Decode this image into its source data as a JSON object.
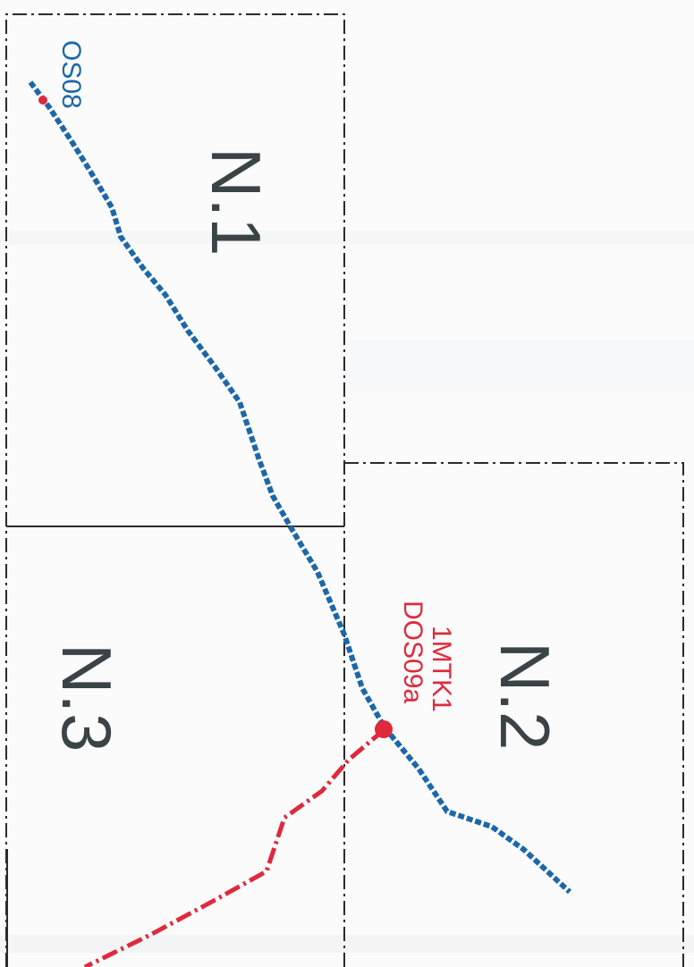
{
  "colors": {
    "background": "#fbfbfc",
    "sheet_border": "#2b2b2b",
    "zone_label": "#3a4346",
    "blue_route": "#1c67a8",
    "red_route": "#de2a3c"
  },
  "zones": [
    {
      "id": "n1",
      "label": "N.1"
    },
    {
      "id": "n2",
      "label": "N.2"
    },
    {
      "id": "n3",
      "label": "N.3"
    }
  ],
  "routes": {
    "blue": {
      "label": "OS08"
    },
    "red": {
      "label_line1": "1MTK1",
      "label_line2": "DOS09a"
    }
  },
  "text_orientation": "rotated 90 degrees clockwise"
}
